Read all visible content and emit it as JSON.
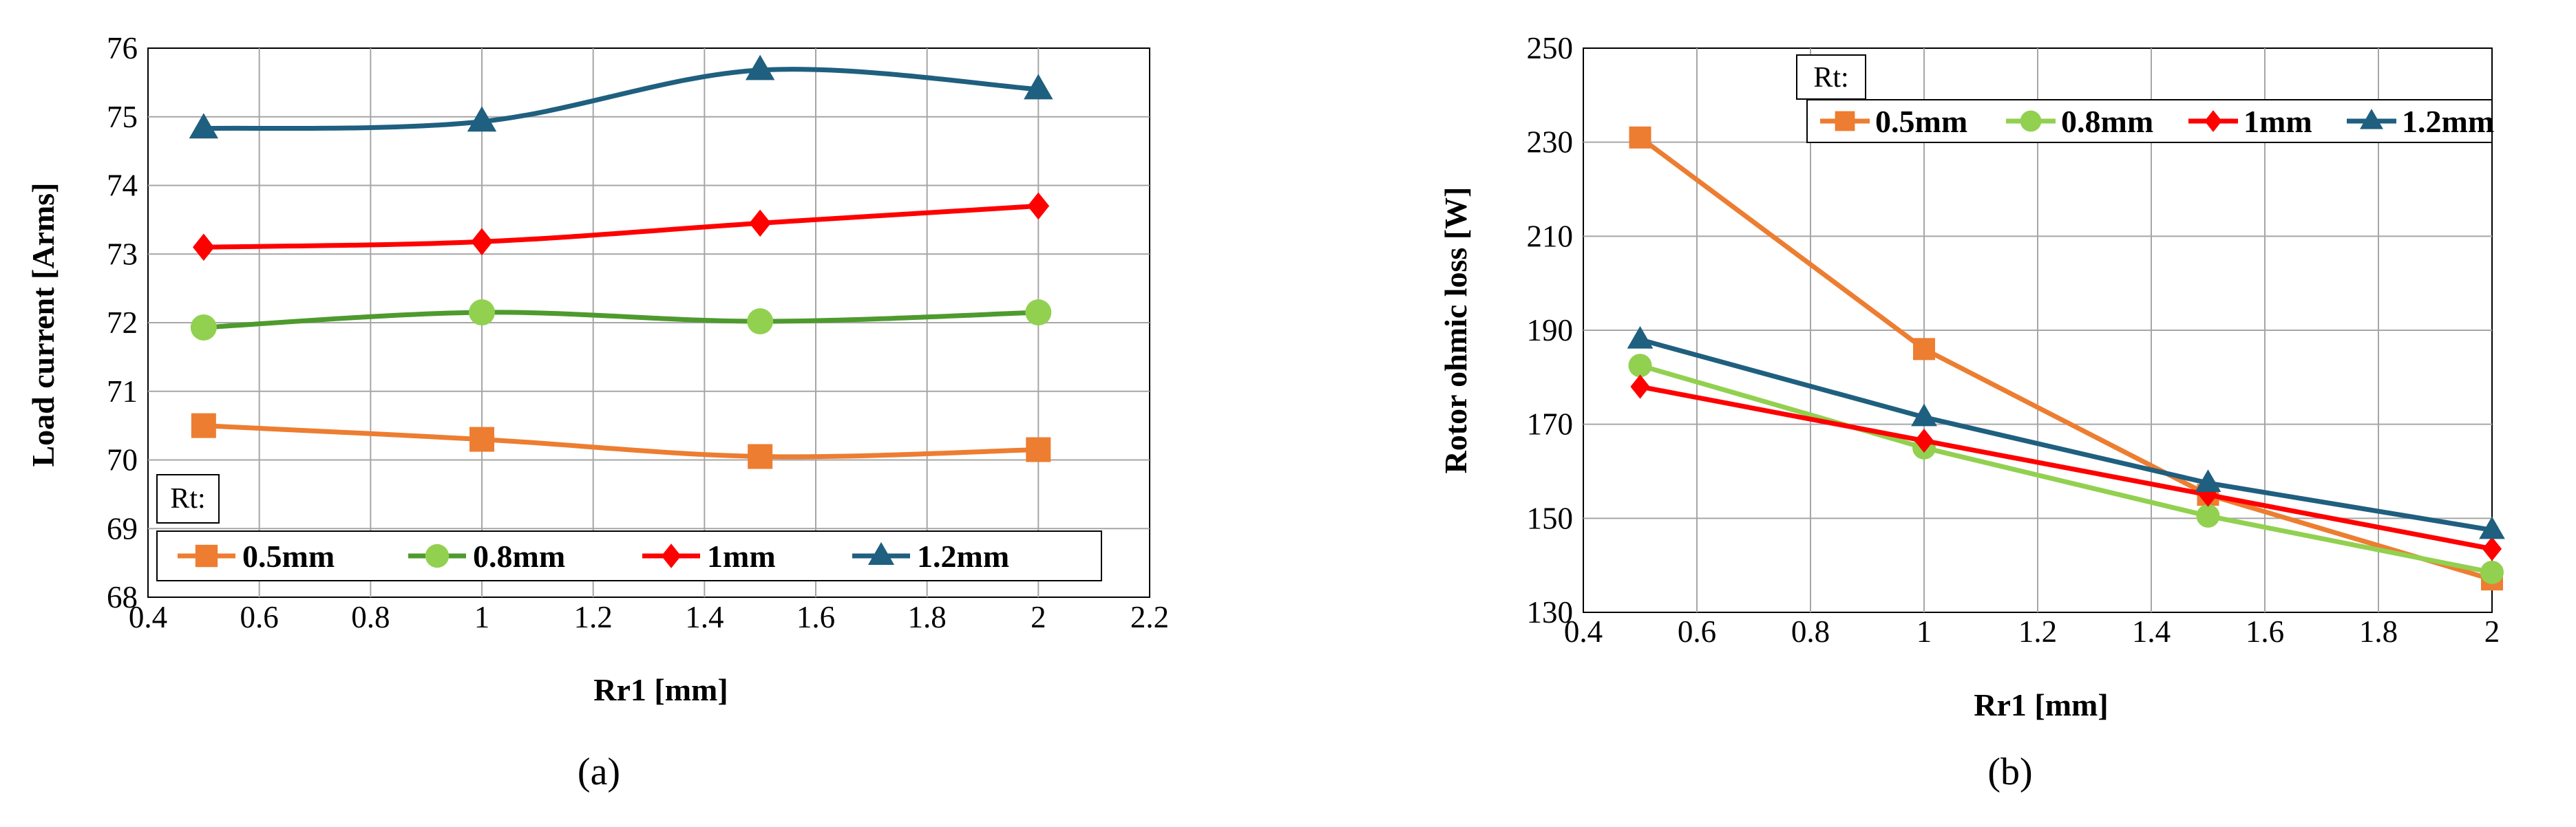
{
  "chart_data": [
    {
      "id": "a",
      "type": "line",
      "smooth": true,
      "caption": "(a)",
      "xlabel": "Rr1 [mm]",
      "ylabel": "Load current [Arms]",
      "xlim": [
        0.4,
        2.2
      ],
      "ylim": [
        68,
        76
      ],
      "xticks": [
        0.4,
        0.6,
        0.8,
        1.0,
        1.2,
        1.4,
        1.6,
        1.8,
        2.0,
        2.2
      ],
      "xtick_labels": [
        "0.4",
        "0.6",
        "0.8",
        "1",
        "1.2",
        "1.4",
        "1.6",
        "1.8",
        "2",
        "2.2"
      ],
      "yticks": [
        68,
        69,
        70,
        71,
        72,
        73,
        74,
        75,
        76
      ],
      "ytick_labels": [
        "68",
        "69",
        "70",
        "71",
        "72",
        "73",
        "74",
        "75",
        "76"
      ],
      "grid": true,
      "legend_title": "Rt:",
      "legend_position": "bottom-inside",
      "x": [
        0.5,
        1.0,
        1.5,
        2.0
      ],
      "series": [
        {
          "name": "0.5mm",
          "color": "#ED7D31",
          "marker": "square",
          "values": [
            70.5,
            70.3,
            70.05,
            70.15
          ]
        },
        {
          "name": "0.8mm",
          "color": "#4E9A2E",
          "markerColor": "#92D050",
          "marker": "circle",
          "values": [
            71.93,
            72.15,
            72.02,
            72.15
          ]
        },
        {
          "name": "1mm",
          "color": "#FF0000",
          "marker": "diamond",
          "values": [
            73.1,
            73.18,
            73.45,
            73.7
          ]
        },
        {
          "name": "1.2mm",
          "color": "#1F5F7F",
          "marker": "triangle",
          "values": [
            74.83,
            74.93,
            75.68,
            75.4
          ]
        }
      ]
    },
    {
      "id": "b",
      "type": "line",
      "smooth": false,
      "caption": "(b)",
      "xlabel": "Rr1 [mm]",
      "ylabel": "Rotor ohmic loss [W]",
      "xlim": [
        0.4,
        2.0
      ],
      "ylim": [
        130,
        250
      ],
      "xticks": [
        0.4,
        0.6,
        0.8,
        1.0,
        1.2,
        1.4,
        1.6,
        1.8,
        2.0
      ],
      "xtick_labels": [
        "0.4",
        "0.6",
        "0.8",
        "1",
        "1.2",
        "1.4",
        "1.6",
        "1.8",
        "2"
      ],
      "yticks": [
        130,
        150,
        170,
        190,
        210,
        230,
        250
      ],
      "ytick_labels": [
        "130",
        "150",
        "170",
        "190",
        "210",
        "230",
        "250"
      ],
      "grid": true,
      "legend_title": "Rt:",
      "legend_position": "top-right",
      "x": [
        0.5,
        1.0,
        1.5,
        2.0
      ],
      "series": [
        {
          "name": "0.5mm",
          "color": "#ED7D31",
          "marker": "square",
          "values": [
            231,
            186,
            155,
            137
          ]
        },
        {
          "name": "0.8mm",
          "color": "#92D050",
          "marker": "circle",
          "values": [
            182.5,
            165,
            150.5,
            138.5
          ]
        },
        {
          "name": "1mm",
          "color": "#FF0000",
          "marker": "diamond",
          "values": [
            178,
            166.5,
            155,
            143.5
          ]
        },
        {
          "name": "1.2mm",
          "color": "#1F5F7F",
          "marker": "triangle",
          "values": [
            188,
            171.5,
            157.5,
            147.5
          ]
        }
      ]
    }
  ]
}
